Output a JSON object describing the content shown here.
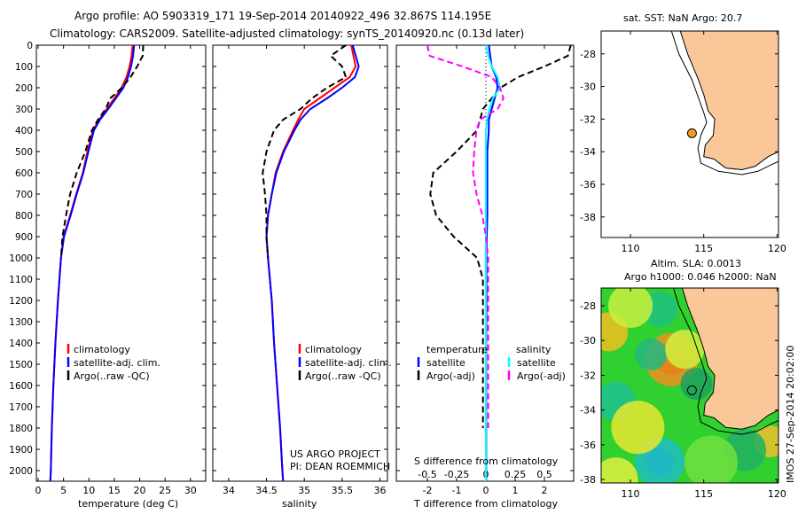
{
  "header": {
    "line1": "Argo profile: AO 5903319_171 19-Sep-2014 20140922_496 32.867S 114.195E",
    "line2": "Climatology: CARS2009. Satellite-adjusted climatology: synTS_20140920.nc (0.13d later)"
  },
  "chart_data": [
    {
      "type": "line",
      "name": "temperature",
      "xlabel": "temperature (deg C)",
      "xlim": [
        -0.35,
        33
      ],
      "ylim": [
        0,
        2050
      ],
      "xticks": [
        0,
        5,
        10,
        15,
        20,
        25,
        30
      ],
      "yticks": [
        0,
        100,
        200,
        300,
        400,
        500,
        600,
        700,
        800,
        900,
        1000,
        1100,
        1200,
        1300,
        1400,
        1500,
        1600,
        1700,
        1800,
        1900,
        2000
      ],
      "legend": [
        "climatology",
        "satellite-adj. clim.",
        "Argo(..raw -QC)"
      ],
      "depth": [
        0,
        50,
        100,
        150,
        200,
        250,
        300,
        350,
        400,
        500,
        600,
        700,
        800,
        900,
        1000,
        1200,
        1400,
        1600,
        1800,
        2000,
        2050
      ],
      "series": [
        {
          "name": "climatology",
          "color": "#ff0000",
          "dash": false,
          "values": [
            18.6,
            18.4,
            18.0,
            17.4,
            16.4,
            15.0,
            13.5,
            12.0,
            10.8,
            9.7,
            8.8,
            7.5,
            6.3,
            5.0,
            4.5,
            3.9,
            3.4,
            3.0,
            2.7,
            2.5,
            2.4
          ]
        },
        {
          "name": "satellite-adj. clim.",
          "color": "#0000ff",
          "dash": false,
          "values": [
            18.9,
            18.7,
            18.3,
            17.7,
            16.8,
            15.3,
            13.8,
            12.2,
            11.0,
            9.9,
            8.9,
            7.6,
            6.4,
            5.1,
            4.5,
            3.9,
            3.4,
            3.0,
            2.7,
            2.5,
            2.4
          ]
        },
        {
          "name": "Argo(..raw -QC)",
          "color": "#000000",
          "dash": true,
          "values": [
            20.7,
            20.6,
            19.5,
            18.2,
            16.5,
            14.2,
            13.3,
            11.8,
            10.6,
            9.3,
            7.6,
            6.3,
            5.5,
            4.8,
            4.5,
            null,
            null,
            null,
            null,
            null,
            null
          ]
        }
      ]
    },
    {
      "type": "line",
      "name": "salinity",
      "xlabel": "salinity",
      "xlim": [
        33.79,
        36.1
      ],
      "ylim": [
        0,
        2050
      ],
      "xticks": [
        34,
        34.5,
        35,
        35.5,
        36
      ],
      "legend": [
        "climatology",
        "satellite-adj. clim.",
        "Argo(..raw -QC)"
      ],
      "depth": [
        0,
        50,
        100,
        150,
        200,
        250,
        300,
        350,
        400,
        500,
        600,
        700,
        800,
        900,
        1000,
        1200,
        1400,
        1600,
        1800,
        2000,
        2050
      ],
      "series": [
        {
          "name": "climatology",
          "color": "#ff0000",
          "dash": false,
          "values": [
            35.62,
            35.65,
            35.68,
            35.6,
            35.4,
            35.2,
            35.0,
            34.92,
            34.85,
            34.72,
            34.62,
            34.57,
            34.52,
            34.5,
            34.52,
            34.57,
            34.6,
            34.64,
            34.68,
            34.71,
            34.72
          ]
        },
        {
          "name": "satellite-adj. clim.",
          "color": "#0000ff",
          "dash": false,
          "values": [
            35.64,
            35.68,
            35.72,
            35.67,
            35.5,
            35.3,
            35.08,
            34.95,
            34.87,
            34.73,
            34.63,
            34.57,
            34.52,
            34.5,
            34.52,
            34.57,
            34.6,
            34.64,
            34.68,
            34.71,
            34.72
          ]
        },
        {
          "name": "Argo(..raw -QC)",
          "color": "#000000",
          "dash": true,
          "values": [
            35.55,
            35.35,
            35.5,
            35.55,
            35.3,
            35.1,
            34.95,
            34.72,
            34.6,
            34.5,
            34.45,
            34.48,
            34.5,
            34.5,
            34.52,
            null,
            null,
            null,
            null,
            null,
            null
          ]
        }
      ]
    },
    {
      "type": "line",
      "name": "difference",
      "xlabel": "T difference from climatology",
      "x2label": "S difference from climatology",
      "xlim": [
        -3.06,
        3.0
      ],
      "ylim": [
        0,
        2050
      ],
      "xticks": [
        -2,
        -1,
        0,
        1,
        2
      ],
      "x2ticks": [
        -0.5,
        -0.25,
        0,
        0.25,
        0.5
      ],
      "legend_titles": [
        "temperature",
        "salinity"
      ],
      "legend": [
        "satellite",
        "Argo(-adj)",
        "satellite",
        "Argo(-adj)"
      ],
      "depth": [
        0,
        50,
        100,
        150,
        200,
        250,
        300,
        350,
        400,
        500,
        600,
        700,
        800,
        900,
        1000,
        1100,
        1200,
        1400,
        1600,
        1800,
        2000,
        2050
      ],
      "series": [
        {
          "name": "T satellite",
          "color": "#0000ff",
          "dash": false,
          "unit": "T",
          "values": [
            0.1,
            0.15,
            0.2,
            0.35,
            0.4,
            0.3,
            0.2,
            0.1,
            0.1,
            0.05,
            0.05,
            0.05,
            0.05,
            0.03,
            0.02,
            0.02,
            0.02,
            0.01,
            0.01,
            0.01,
            0.01,
            0.01
          ]
        },
        {
          "name": "T Argo(-adj)",
          "color": "#000000",
          "dash": true,
          "unit": "T",
          "values": [
            2.9,
            2.8,
            2.0,
            1.1,
            0.5,
            0.2,
            -0.1,
            -0.2,
            -0.3,
            -1.0,
            -1.8,
            -1.9,
            -1.7,
            -1.1,
            -0.3,
            -0.1,
            -0.1,
            -0.1,
            -0.1,
            -0.1,
            null,
            null
          ]
        },
        {
          "name": "S satellite",
          "color": "#00ffff",
          "dash": false,
          "unit": "S",
          "values": [
            0,
            0.02,
            0.05,
            0.1,
            0.12,
            0.06,
            0.03,
            0.01,
            0,
            0,
            0,
            0,
            0,
            0,
            0,
            0,
            0,
            0,
            0,
            0,
            0,
            0
          ]
        },
        {
          "name": "S Argo(-adj)",
          "color": "#ff00ff",
          "dash": true,
          "unit": "S",
          "values": [
            -0.5,
            -0.48,
            -0.2,
            0.05,
            0.12,
            0.15,
            0.1,
            -0.05,
            -0.08,
            -0.1,
            -0.11,
            -0.08,
            -0.03,
            0,
            0.02,
            0.02,
            0.02,
            0.02,
            0.02,
            0.02,
            null,
            null
          ]
        }
      ]
    }
  ],
  "credit": {
    "line1": "US ARGO PROJECT",
    "line2": "PI: DEAN ROEMMICH"
  },
  "map_top": {
    "title": "sat. SST: NaN Argo: 20.7",
    "xticks": [
      110,
      115,
      120
    ],
    "yticks": [
      -28,
      -30,
      -32,
      -34,
      -36,
      -38
    ],
    "lon": [
      108,
      120.1
    ],
    "lat": [
      -26.6,
      -39.26
    ],
    "float": [
      114.195,
      -32.867
    ],
    "marker_color": "#f0a020",
    "land_color": "#fac898"
  },
  "map_bottom": {
    "title1": "Altim. SLA: 0.0013",
    "title2": "Argo h1000: 0.046 h2000: NaN",
    "xticks": [
      110,
      115,
      120
    ],
    "yticks": [
      -28,
      -30,
      -32,
      -34,
      -36,
      -38
    ],
    "lon": [
      108,
      120.1
    ],
    "lat": [
      -26.98,
      -38.2
    ],
    "float": [
      114.195,
      -32.867
    ],
    "stamp": "IMOS 27-Sep-2014 20:02:00",
    "land_color": "#fac898"
  }
}
